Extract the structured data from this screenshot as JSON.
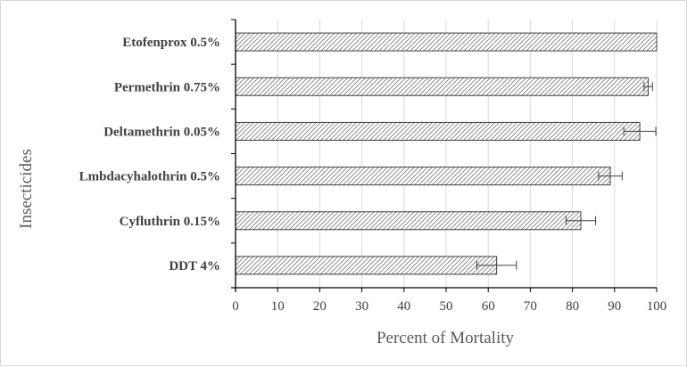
{
  "chart_data": {
    "type": "bar",
    "orientation": "horizontal",
    "title": "",
    "xlabel": "Percent of Mortality",
    "ylabel": "Insecticides",
    "xlim": [
      0,
      100
    ],
    "x_ticks": [
      0,
      10,
      20,
      30,
      40,
      50,
      60,
      70,
      80,
      90,
      100
    ],
    "grid": "vertical major gridlines",
    "legend": "none",
    "bar_fill": "diagonal hatch",
    "categories": [
      "Etofenprox 0.5%",
      "Permethrin 0.75%",
      "Deltamethrin 0.05%",
      "Lmbdacyhalothrin 0.5%",
      "Cyfluthrin 0.15%",
      "DDT 4%"
    ],
    "values": [
      100,
      98,
      96,
      89,
      82,
      62
    ],
    "error": [
      0,
      1,
      3.8,
      2.8,
      3.5,
      4.7
    ],
    "colors": {
      "bar_outline": "#404040",
      "hatch": "#808080",
      "grid": "#d9d9d9",
      "axis": "#000000",
      "text": "#404040"
    }
  }
}
